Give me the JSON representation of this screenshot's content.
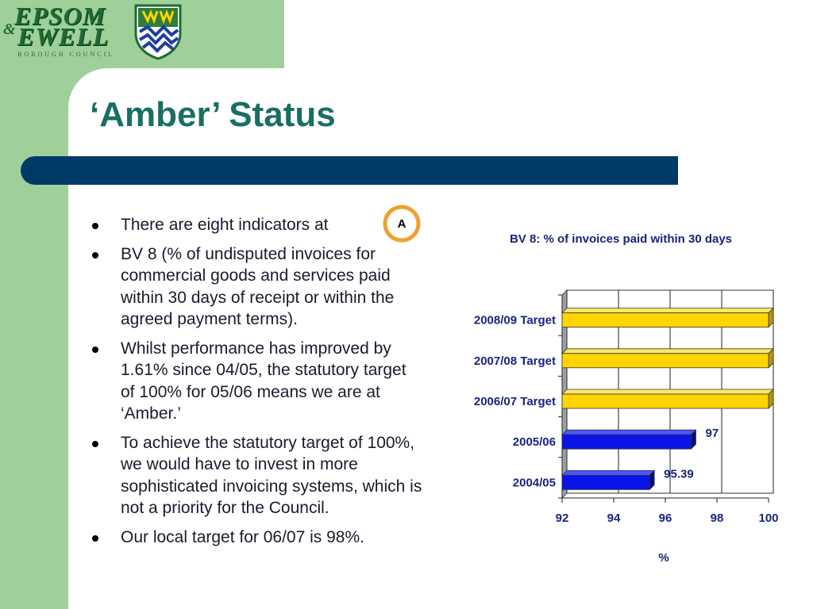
{
  "logo": {
    "line1": "EPSOM",
    "ampersand": "&",
    "line2": "EWELL",
    "subtitle": "BOROUGH COUNCIL"
  },
  "title": "‘Amber’ Status",
  "badge_letter": "A",
  "bullets": [
    "There are eight indicators at",
    " BV 8 (% of undisputed invoices for commercial goods and services paid within 30 days of receipt or within the agreed payment terms).",
    "Whilst performance has improved by 1.61% since 04/05, the statutory target of 100% for 05/06 means we are at ‘Amber.’",
    "To achieve the statutory target of 100%, we would have to invest in more sophisticated invoicing systems, which is not a priority for the Council.",
    "Our local target for 06/07 is 98%."
  ],
  "colors": {
    "sidebar_green": "#9fd09a",
    "title_teal": "#1a6e63",
    "rule_navy": "#003a66",
    "amber": "#f0a030",
    "target_bar": "#ffd400",
    "actual_bar": "#0a14e6"
  },
  "chart_data": {
    "type": "bar",
    "orientation": "horizontal",
    "title": "BV 8:  % of invoices paid within 30 days",
    "xlabel": "%",
    "xlim": [
      92,
      100
    ],
    "xticks": [
      "92",
      "94",
      "96",
      "98",
      "100"
    ],
    "grid": true,
    "categories": [
      "2008/09 Target",
      "2007/08 Target",
      "2006/07 Target",
      "2005/06",
      "2004/05"
    ],
    "values": [
      100,
      100,
      100,
      97,
      95.39
    ],
    "data_labels": [
      "",
      "",
      "",
      "97",
      "95.39"
    ],
    "bar_kind": [
      "target",
      "target",
      "target",
      "actual",
      "actual"
    ]
  }
}
